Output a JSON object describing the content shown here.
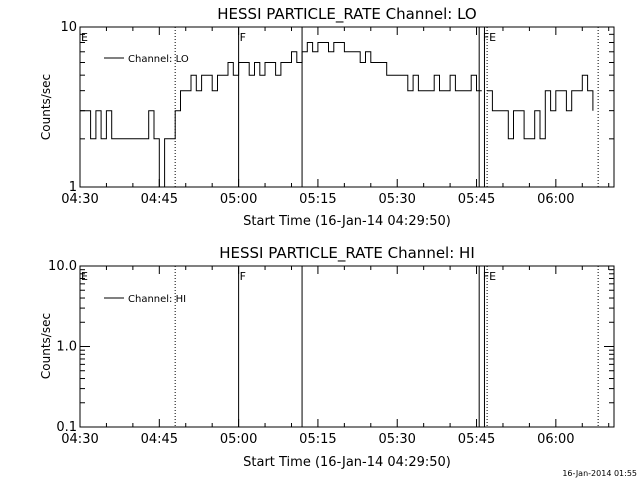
{
  "stamp": "16-Jan-2014 01:55",
  "chart_data": [
    {
      "type": "line",
      "title": "HESSI PARTICLE_RATE Channel: LO",
      "xlabel": "Start Time (16-Jan-14 04:29:50)",
      "ylabel": "Counts/sec",
      "yscale": "log",
      "ylim": [
        1,
        10
      ],
      "xlim": [
        "04:30",
        "06:11"
      ],
      "y_ticks": [
        "1",
        "10"
      ],
      "x_ticks": [
        "04:30",
        "04:45",
        "05:00",
        "05:15",
        "05:30",
        "05:45",
        "06:00"
      ],
      "legend": "Channel: LO",
      "markers": [
        {
          "label": "E",
          "time": "04:30"
        },
        {
          "label": "F",
          "time": "05:00"
        },
        {
          "label": "FE",
          "time": "05:46"
        }
      ],
      "vlines": [
        {
          "time": "04:48",
          "style": "dotted"
        },
        {
          "time": "05:00",
          "style": "solid"
        },
        {
          "time": "05:12",
          "style": "solid"
        },
        {
          "time": "05:45.5",
          "style": "solid"
        },
        {
          "time": "05:46.5",
          "style": "solid"
        },
        {
          "time": "05:47",
          "style": "dotted"
        },
        {
          "time": "06:08",
          "style": "dotted"
        }
      ],
      "series": [
        {
          "segments": [
            {
              "x": [
                "04:30",
                "04:31",
                "04:32",
                "04:33",
                "04:34",
                "04:35",
                "04:36",
                "04:37",
                "04:38",
                "04:39",
                "04:40",
                "04:41",
                "04:42",
                "04:43",
                "04:44",
                "04:45",
                "04:46",
                "04:47",
                "04:48",
                "04:49",
                "04:50",
                "04:51",
                "04:52",
                "04:53",
                "04:54",
                "04:55",
                "04:56",
                "04:57",
                "04:58",
                "04:59",
                "05:00",
                "05:01",
                "05:02",
                "05:03",
                "05:04",
                "05:05",
                "05:06",
                "05:07",
                "05:08",
                "05:09",
                "05:10",
                "05:11",
                "05:12",
                "05:13",
                "05:14",
                "05:15",
                "05:16",
                "05:17",
                "05:18",
                "05:19",
                "05:20",
                "05:21",
                "05:22",
                "05:23",
                "05:24",
                "05:25",
                "05:26",
                "05:27",
                "05:28",
                "05:29",
                "05:30",
                "05:31",
                "05:32",
                "05:33",
                "05:34",
                "05:35",
                "05:36",
                "05:37",
                "05:38",
                "05:39",
                "05:40",
                "05:41",
                "05:42",
                "05:43",
                "05:44",
                "05:45",
                "05:46"
              ],
              "y": [
                3,
                3,
                2,
                3,
                2,
                3,
                2,
                2,
                2,
                2,
                2,
                2,
                2,
                3,
                2,
                1,
                2,
                2,
                3,
                4,
                4,
                5,
                4,
                5,
                5,
                4,
                5,
                5,
                6,
                5,
                6,
                6,
                5,
                6,
                5,
                6,
                6,
                5,
                6,
                6,
                7,
                6,
                7,
                8,
                7,
                8,
                8,
                7,
                8,
                8,
                7,
                7,
                7,
                6,
                7,
                6,
                6,
                6,
                5,
                5,
                5,
                5,
                4,
                5,
                4,
                4,
                4,
                5,
                4,
                4,
                5,
                4,
                4,
                4,
                5,
                4,
                4
              ]
            },
            {
              "x": [
                "05:47",
                "05:48",
                "05:49",
                "05:50",
                "05:51",
                "05:52",
                "05:53",
                "05:54",
                "05:55",
                "05:56",
                "05:57",
                "05:58",
                "05:59",
                "06:00",
                "06:01",
                "06:02",
                "06:03",
                "06:04",
                "06:05",
                "06:06",
                "06:07"
              ],
              "y": [
                4,
                3,
                3,
                3,
                2,
                3,
                3,
                2,
                2,
                3,
                2,
                4,
                3,
                4,
                4,
                3,
                4,
                4,
                5,
                4,
                3
              ]
            }
          ]
        }
      ]
    },
    {
      "type": "line",
      "title": "HESSI PARTICLE_RATE Channel: HI",
      "xlabel": "Start Time (16-Jan-14 04:29:50)",
      "ylabel": "Counts/sec",
      "yscale": "log",
      "ylim": [
        0.1,
        10
      ],
      "xlim": [
        "04:30",
        "06:11"
      ],
      "y_ticks": [
        "0.1",
        "1.0",
        "10.0"
      ],
      "x_ticks": [
        "04:30",
        "04:45",
        "05:00",
        "05:15",
        "05:30",
        "05:45",
        "06:00"
      ],
      "legend": "Channel: HI",
      "markers": [
        {
          "label": "E",
          "time": "04:30"
        },
        {
          "label": "F",
          "time": "05:00"
        },
        {
          "label": "FE",
          "time": "05:46"
        }
      ],
      "vlines": [
        {
          "time": "04:48",
          "style": "dotted"
        },
        {
          "time": "05:00",
          "style": "solid"
        },
        {
          "time": "05:12",
          "style": "solid"
        },
        {
          "time": "05:45.5",
          "style": "solid"
        },
        {
          "time": "05:46.5",
          "style": "solid"
        },
        {
          "time": "05:47",
          "style": "dotted"
        },
        {
          "time": "06:08",
          "style": "dotted"
        }
      ],
      "series": []
    }
  ]
}
